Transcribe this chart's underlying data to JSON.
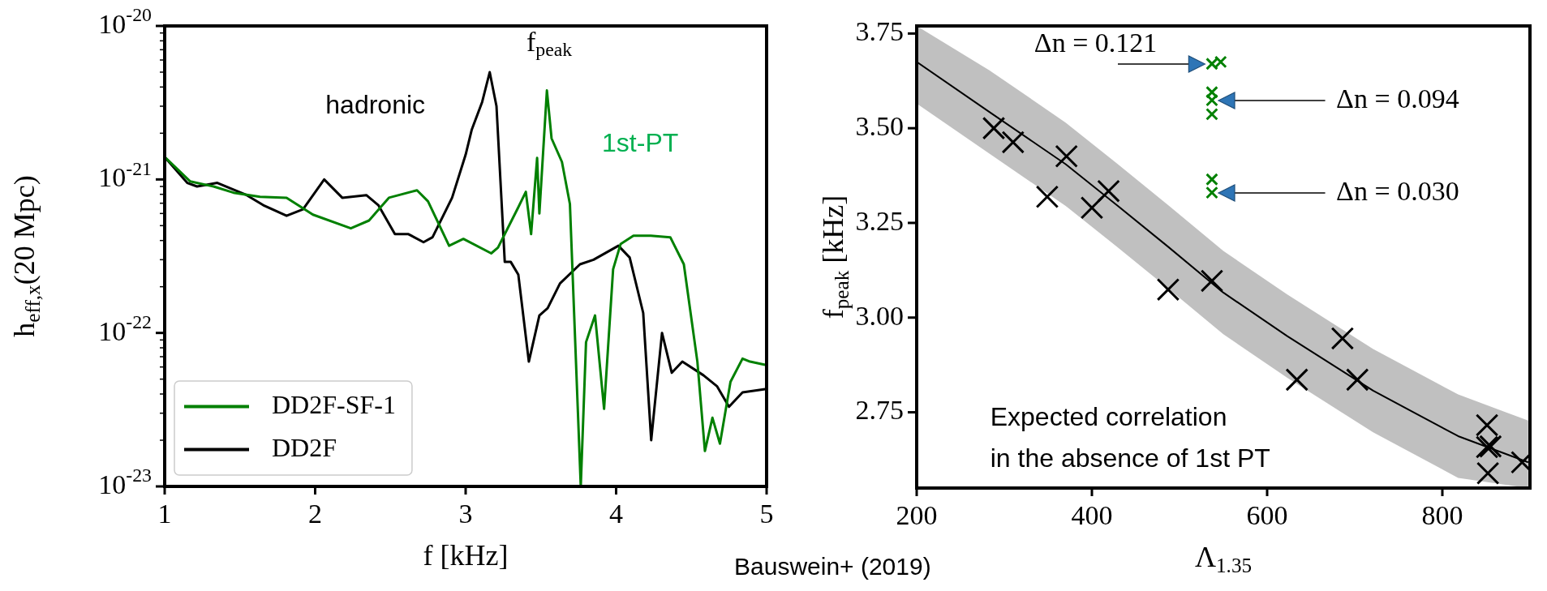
{
  "chart_data": [
    {
      "type": "line",
      "xlabel": "f [kHz]",
      "ylabel": "h$_{eff,x}$(20 Mpc)",
      "log": "y",
      "xlim": [
        1,
        5
      ],
      "xticks": [
        1,
        2,
        3,
        4,
        5
      ],
      "ylim": [
        1e-23,
        1e-20
      ],
      "yticks": [
        {
          "value": 1e-23,
          "label": "10$^{-23}$"
        },
        {
          "value": 2e-23,
          "label": null
        },
        {
          "value": 3e-23,
          "label": null
        },
        {
          "value": 4e-23,
          "label": null
        },
        {
          "value": 5e-23,
          "label": null
        },
        {
          "value": 6e-23,
          "label": null
        },
        {
          "value": 7e-23,
          "label": null
        },
        {
          "value": 8e-23,
          "label": null
        },
        {
          "value": 9e-23,
          "label": null
        },
        {
          "value": 1e-22,
          "label": "10$^{-22}$"
        },
        {
          "value": 2e-22,
          "label": null
        },
        {
          "value": 3e-22,
          "label": null
        },
        {
          "value": 4e-22,
          "label": null
        },
        {
          "value": 5e-22,
          "label": null
        },
        {
          "value": 6e-22,
          "label": null
        },
        {
          "value": 7e-22,
          "label": null
        },
        {
          "value": 8e-22,
          "label": null
        },
        {
          "value": 9e-22,
          "label": null
        },
        {
          "value": 1e-21,
          "label": "10$^{-21}$"
        },
        {
          "value": 2e-21,
          "label": null
        },
        {
          "value": 3e-21,
          "label": null
        },
        {
          "value": 4e-21,
          "label": null
        },
        {
          "value": 5e-21,
          "label": null
        },
        {
          "value": 6e-21,
          "label": null
        },
        {
          "value": 7e-21,
          "label": null
        },
        {
          "value": 8e-21,
          "label": null
        },
        {
          "value": 9e-21,
          "label": null
        },
        {
          "value": 1e-20,
          "label": "10$^{-20}$"
        }
      ],
      "grid": false,
      "legend": "bottom left",
      "marker": "none",
      "line_style": "solid",
      "series": [
        {
          "name": "DD2F-SF-1",
          "color": "#008000",
          "x": [
            1.0,
            1.17,
            1.325,
            1.457,
            1.633,
            1.81,
            1.985,
            2.237,
            2.358,
            2.49,
            2.677,
            2.75,
            2.89,
            2.985,
            3.17,
            3.215,
            3.347,
            3.4,
            3.435,
            3.475,
            3.49,
            3.54,
            3.571,
            3.64,
            3.693,
            3.765,
            3.8,
            3.86,
            3.92,
            3.98,
            4.03,
            4.115,
            4.23,
            4.36,
            4.45,
            4.54,
            4.59,
            4.64,
            4.69,
            4.76,
            4.84,
            4.89,
            4.99
          ],
          "values": [
            1.4e-21,
            9.7e-22,
            9e-22,
            8.2e-22,
            7.7e-22,
            7.6e-22,
            5.9e-22,
            4.8e-22,
            5.4e-22,
            7.6e-22,
            8.5e-22,
            7.2e-22,
            3.7e-22,
            4.1e-22,
            3.3e-22,
            3.6e-22,
            6.5e-22,
            8.3e-22,
            4.4e-22,
            1.38e-21,
            6e-22,
            3.8e-21,
            1.85e-21,
            1.3e-21,
            6.9e-22,
            1e-23,
            8.7e-23,
            1.3e-22,
            3.2e-23,
            2.6e-22,
            3.8e-22,
            4.3e-22,
            4.3e-22,
            4.2e-22,
            2.8e-22,
            6.5e-23,
            1.7e-23,
            2.8e-23,
            1.9e-23,
            4.8e-23,
            6.8e-23,
            6.5e-23,
            6.2e-23
          ]
        },
        {
          "name": "DD2F",
          "color": "#000000",
          "x": [
            1.0,
            1.15,
            1.215,
            1.35,
            1.545,
            1.655,
            1.81,
            1.92,
            2.06,
            2.18,
            2.34,
            2.42,
            2.53,
            2.62,
            2.72,
            2.78,
            2.91,
            3.0,
            3.04,
            3.11,
            3.16,
            3.205,
            3.24,
            3.26,
            3.3,
            3.35,
            3.42,
            3.49,
            3.545,
            3.627,
            3.76,
            3.85,
            4.015,
            4.09,
            4.18,
            4.233,
            4.305,
            4.37,
            4.44,
            4.58,
            4.67,
            4.75,
            4.84,
            4.99
          ],
          "values": [
            1.4e-21,
            9.5e-22,
            9e-22,
            9.5e-22,
            7.9e-22,
            6.8e-22,
            5.8e-22,
            6.4e-22,
            1e-21,
            7.6e-22,
            7.9e-22,
            6.8e-22,
            4.4e-22,
            4.4e-22,
            3.9e-22,
            4.2e-22,
            7.6e-22,
            1.45e-21,
            2.1e-21,
            3.2e-21,
            5e-21,
            3e-21,
            6.8e-22,
            2.9e-22,
            2.9e-22,
            2.4e-22,
            6.5e-23,
            1.3e-22,
            1.45e-22,
            2.1e-22,
            2.8e-22,
            3e-22,
            3.7e-22,
            3.1e-22,
            1.35e-22,
            2e-23,
            1e-22,
            5.5e-23,
            6.5e-23,
            5.3e-23,
            4.5e-23,
            3.3e-23,
            4.1e-23,
            4.3e-23
          ]
        }
      ],
      "annotations": [
        "hadronic",
        "f$_{peak}$",
        "1st-PT",
        "Bauswein+ (2019)"
      ]
    },
    {
      "type": "scatter",
      "xlabel": "Λ$_{1.35}$",
      "ylabel": "f$_{peak}$ [kHz]",
      "xlim": [
        200,
        900
      ],
      "xticks": [
        200,
        400,
        600,
        800
      ],
      "ylim": [
        2.55,
        3.77
      ],
      "yticks": [
        {
          "value": 2.75,
          "label": "2.75"
        },
        {
          "value": 3.0,
          "label": "3.00"
        },
        {
          "value": 3.25,
          "label": "3.25"
        },
        {
          "value": 3.5,
          "label": "3.50"
        },
        {
          "value": 3.75,
          "label": "3.75"
        }
      ],
      "grid": false,
      "legend": false,
      "series": [
        {
          "color": "#000000",
          "marker": "cross",
          "x": [
            288,
            310,
            371,
            400,
            487,
            537,
            634,
            686,
            852,
            855,
            891
          ],
          "values": [
            3.5,
            3.463,
            3.426,
            3.29,
            3.074,
            3.097,
            2.836,
            2.945,
            2.589,
            2.66,
            2.618
          ]
        },
        {
          "color": "#000000",
          "marker": "cross",
          "x": [
            349,
            703,
            851
          ],
          "values": [
            3.319,
            2.836,
            2.658
          ]
        },
        {
          "color": "#000000",
          "marker": "cross",
          "x": [
            419,
            851
          ],
          "values": [
            3.334,
            2.716
          ]
        },
        {
          "color": "#008000",
          "marker": "cross",
          "x": [
            537,
            547,
            537,
            537,
            537,
            537,
            537
          ],
          "values": [
            3.67,
            3.675,
            3.595,
            3.574,
            3.537,
            3.365,
            3.33
          ]
        },
        {
          "type": "line",
          "color": "#000000",
          "marker": "none",
          "x": [
            200,
            283,
            370,
            429,
            487,
            550,
            623,
            721,
            818,
            898
          ],
          "values": [
            3.675,
            3.543,
            3.405,
            3.296,
            3.187,
            3.066,
            2.951,
            2.807,
            2.687,
            2.618
          ],
          "lower": [
            3.565,
            3.433,
            3.295,
            3.186,
            3.077,
            2.956,
            2.841,
            2.697,
            2.577,
            2.55
          ],
          "upper": [
            3.77,
            3.653,
            3.515,
            3.406,
            3.297,
            3.176,
            3.061,
            2.917,
            2.797,
            2.728
          ]
        }
      ],
      "annotations": [
        "Δn = 0.121",
        "Δn = 0.094",
        "Δn = 0.030",
        "Expected correlation\nin the absence of 1st PT"
      ]
    }
  ]
}
